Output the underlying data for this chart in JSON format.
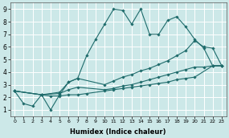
{
  "xlabel": "Humidex (Indice chaleur)",
  "bg_color": "#cce8e8",
  "grid_color": "#b0d8d8",
  "line_color": "#1e6b6b",
  "xlim": [
    -0.5,
    23.5
  ],
  "ylim": [
    0.5,
    9.5
  ],
  "xticks": [
    0,
    1,
    2,
    3,
    4,
    5,
    6,
    7,
    8,
    9,
    10,
    11,
    12,
    13,
    14,
    15,
    16,
    17,
    18,
    19,
    20,
    21,
    22,
    23
  ],
  "yticks": [
    1,
    2,
    3,
    4,
    5,
    6,
    7,
    8,
    9
  ],
  "series": [
    {
      "x": [
        0,
        1,
        2,
        3,
        4,
        5,
        6,
        7,
        8,
        9,
        10,
        11,
        12,
        13,
        14,
        15,
        16,
        17,
        18,
        19,
        20,
        21,
        22,
        23
      ],
      "y": [
        2.5,
        1.5,
        1.3,
        2.2,
        1.0,
        2.2,
        3.2,
        3.5,
        5.3,
        6.6,
        7.8,
        9.0,
        8.9,
        7.8,
        9.0,
        7.0,
        7.0,
        8.1,
        8.4,
        7.6,
        6.6,
        5.9,
        4.5,
        4.5
      ]
    },
    {
      "x": [
        0,
        3,
        5,
        6,
        7,
        10,
        11,
        12,
        13,
        14,
        15,
        16,
        17,
        18,
        19,
        20,
        21,
        22,
        23
      ],
      "y": [
        2.5,
        2.2,
        2.4,
        3.2,
        3.5,
        3.0,
        3.3,
        3.6,
        3.8,
        4.1,
        4.3,
        4.6,
        4.9,
        5.3,
        5.7,
        6.5,
        6.0,
        5.9,
        4.5
      ]
    },
    {
      "x": [
        0,
        3,
        5,
        6,
        7,
        10,
        11,
        12,
        13,
        14,
        15,
        16,
        17,
        18,
        19,
        20,
        21,
        22,
        23
      ],
      "y": [
        2.5,
        2.2,
        2.3,
        2.6,
        2.8,
        2.6,
        2.7,
        2.9,
        3.0,
        3.2,
        3.4,
        3.6,
        3.8,
        4.0,
        4.2,
        4.4,
        4.4,
        4.5,
        4.5
      ]
    },
    {
      "x": [
        0,
        3,
        4,
        5,
        6,
        7,
        8,
        10,
        11,
        12,
        13,
        14,
        15,
        16,
        17,
        18,
        19,
        20,
        22,
        23
      ],
      "y": [
        2.5,
        2.2,
        2.1,
        2.1,
        2.2,
        2.2,
        2.3,
        2.5,
        2.6,
        2.7,
        2.8,
        2.9,
        3.0,
        3.1,
        3.2,
        3.4,
        3.5,
        3.6,
        4.5,
        4.5
      ]
    }
  ]
}
